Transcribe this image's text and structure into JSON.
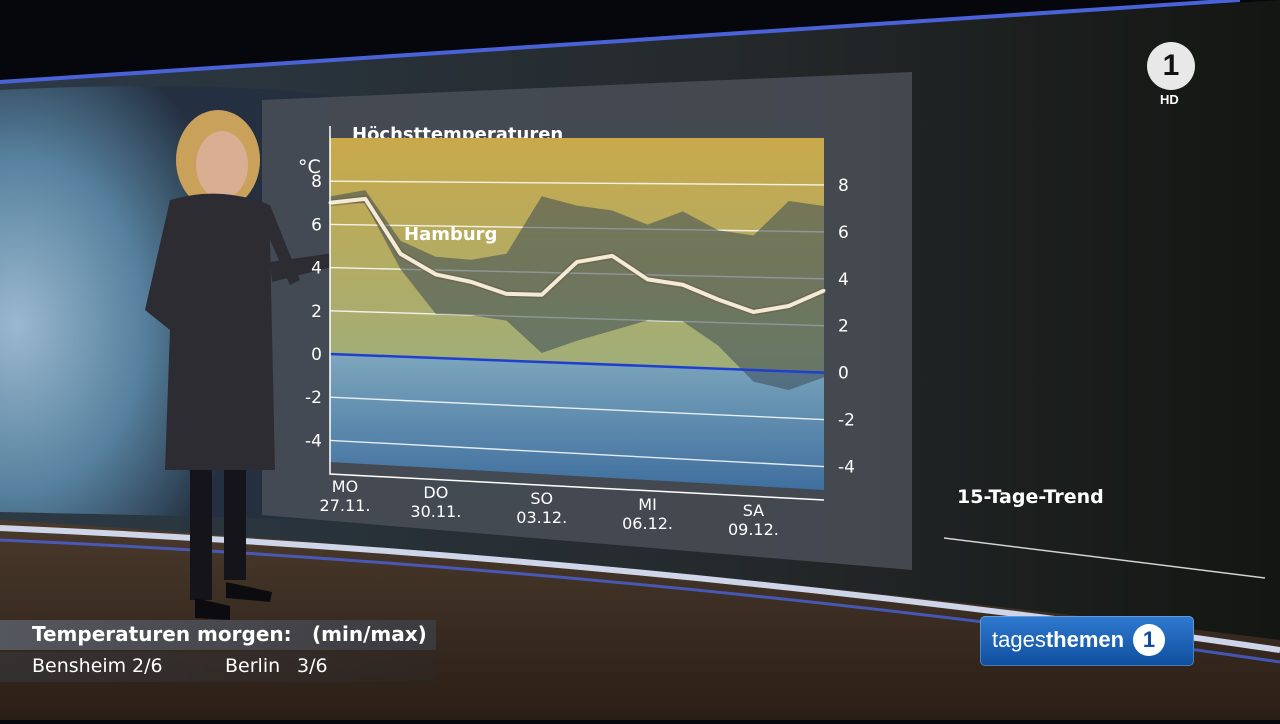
{
  "broadcast": {
    "logo": "1",
    "hd_label": "HD",
    "trend_label": "15-Tage-Trend",
    "show_name_regular": "tages",
    "show_name_bold": "themen",
    "show_logo": "1"
  },
  "lower_third": {
    "title": "Temperaturen morgen:",
    "unit_hint": "(min/max)",
    "cities": [
      {
        "name": "Bensheim",
        "value": "2/6"
      },
      {
        "name": "Berlin",
        "value": "3/6"
      }
    ]
  },
  "colors": {
    "warm_band": "#c9a94a",
    "cold_band": "#4a7fb0",
    "zero_line": "#1f3fd0",
    "line": "#f3ead8",
    "range_band": "#3a4a55"
  },
  "chart_data": {
    "type": "line",
    "title": "Höchsttemperaturen",
    "ylabel": "°C",
    "ylim": [
      -5,
      10
    ],
    "yticks": [
      -4,
      -2,
      0,
      2,
      4,
      6,
      8
    ],
    "categories": [
      {
        "day": "MO",
        "date": "27.11."
      },
      {
        "day": "DO",
        "date": "30.11."
      },
      {
        "day": "SO",
        "date": "03.12."
      },
      {
        "day": "MI",
        "date": "06.12."
      },
      {
        "day": "SA",
        "date": "09.12."
      }
    ],
    "category_index": [
      0,
      3,
      6,
      9,
      12
    ],
    "x": [
      0,
      1,
      2,
      3,
      4,
      5,
      6,
      7,
      8,
      9,
      10,
      11,
      12,
      13,
      14
    ],
    "series": [
      {
        "name": "Hamburg",
        "values": [
          7.0,
          7.2,
          4.7,
          3.8,
          3.5,
          3.0,
          3.0,
          4.5,
          4.8,
          3.8,
          3.6,
          3.0,
          2.5,
          2.8,
          3.5
        ]
      }
    ],
    "band_upper": [
      7.3,
      7.6,
      5.3,
      4.6,
      4.5,
      4.8,
      7.4,
      7.0,
      6.8,
      6.2,
      6.8,
      6.0,
      5.8,
      7.3,
      7.1
    ],
    "band_lower": [
      7.0,
      7.0,
      4.0,
      2.0,
      2.0,
      1.8,
      0.4,
      1.0,
      1.5,
      2.0,
      2.0,
      1.0,
      -0.5,
      -0.8,
      -0.2
    ],
    "grid": true
  }
}
